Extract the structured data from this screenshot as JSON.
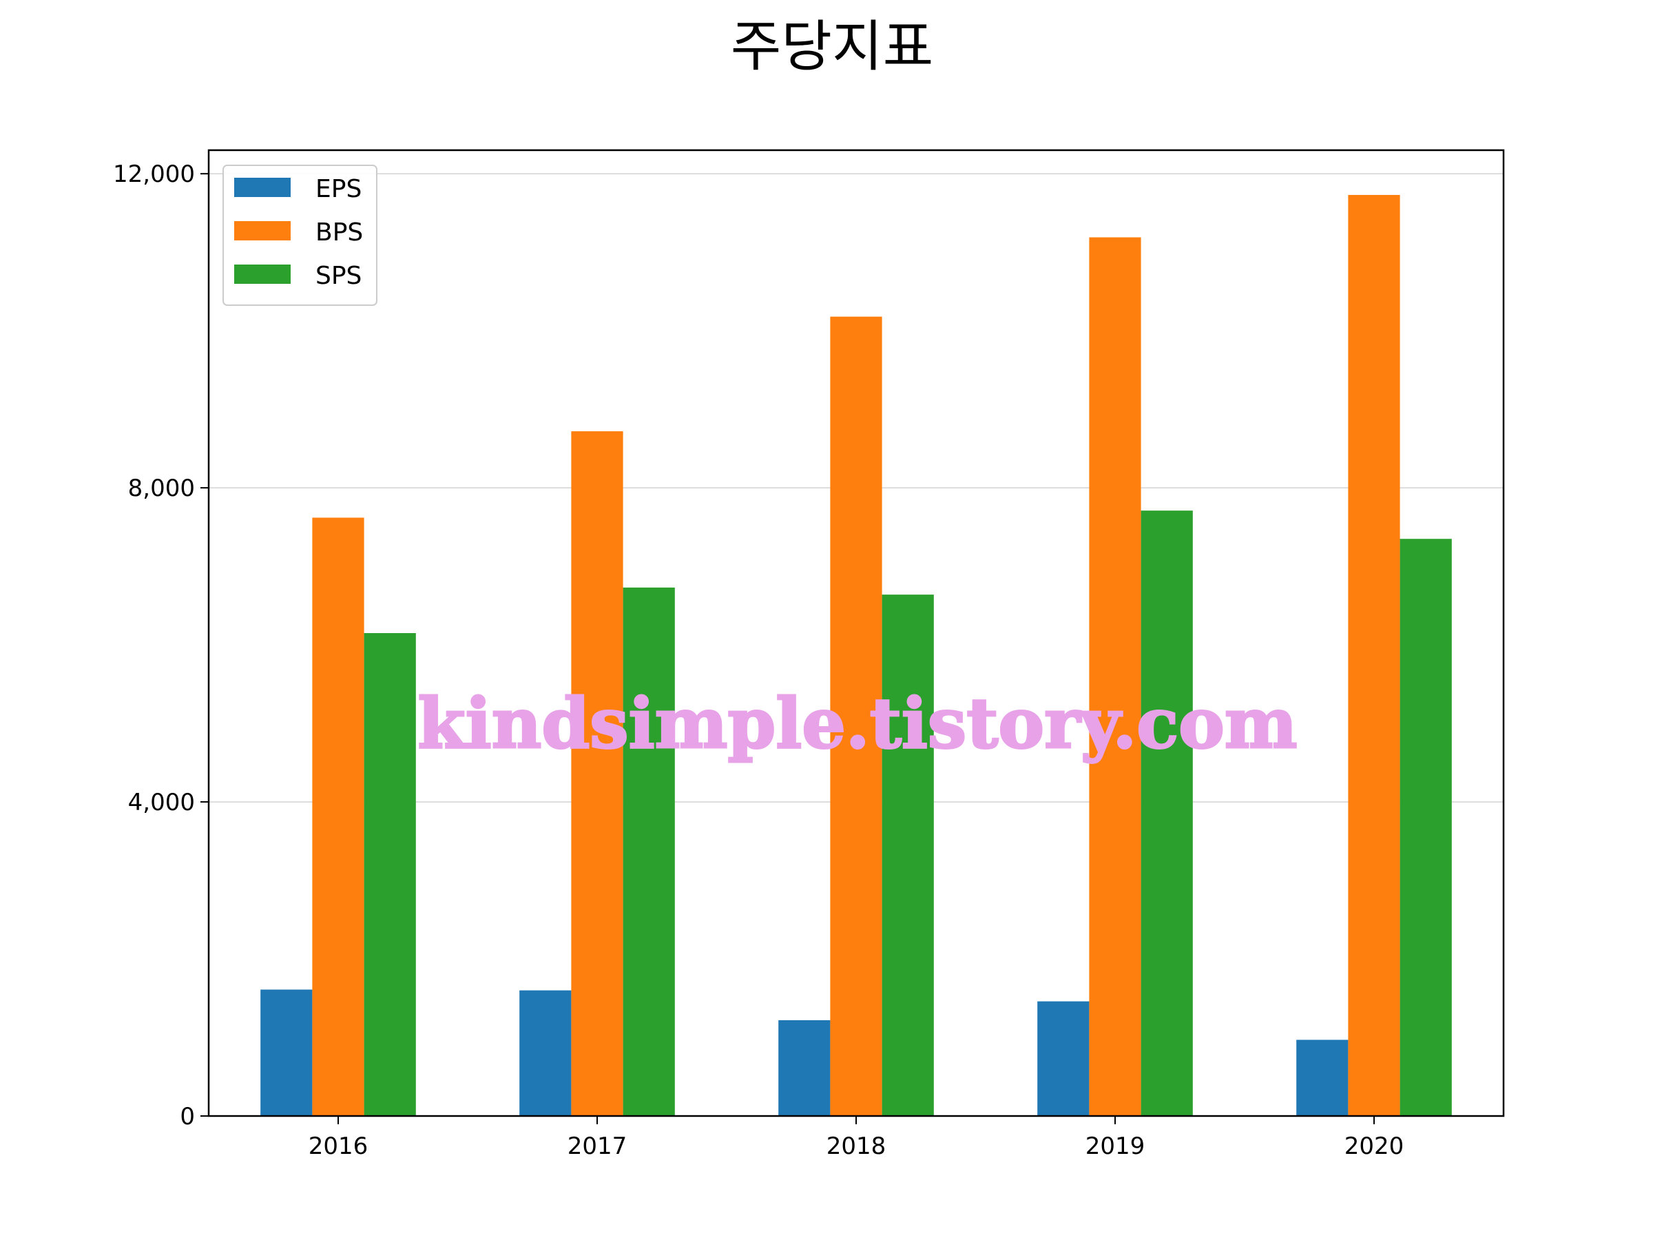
{
  "chart_data": {
    "type": "bar",
    "title": "주당지표",
    "xlabel": "",
    "ylabel": "",
    "categories": [
      "2016",
      "2017",
      "2018",
      "2019",
      "2020"
    ],
    "series": [
      {
        "name": "EPS",
        "color": "#1f77b4",
        "values": [
          1610,
          1600,
          1220,
          1460,
          970
        ]
      },
      {
        "name": "BPS",
        "color": "#ff7f0e",
        "values": [
          7620,
          8720,
          10180,
          11190,
          11730
        ]
      },
      {
        "name": "SPS",
        "color": "#2ca02c",
        "values": [
          6150,
          6730,
          6640,
          7710,
          7350
        ]
      }
    ],
    "ylim": [
      0,
      12300
    ],
    "yticks": [
      0,
      4000,
      8000,
      12000
    ],
    "ytick_labels": [
      "0",
      "4,000",
      "8,000",
      "12,000"
    ],
    "grid": "y",
    "legend": "top-left"
  },
  "watermark": "kindsimple.tistory.com"
}
